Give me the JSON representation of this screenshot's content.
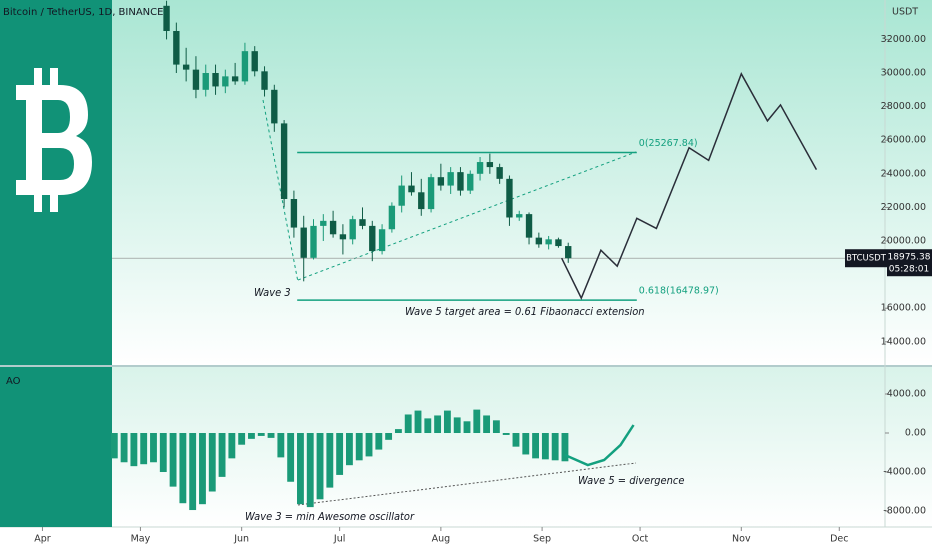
{
  "header": {
    "title": "Bitcoin / TetherUS, 1D, BINANCE",
    "currency": "USDT",
    "symbol": "BTCUSDT",
    "countdown": "05:28:01"
  },
  "chart_data": [
    {
      "type": "candlestick",
      "x": [
        38,
        41,
        44,
        47,
        50,
        53,
        56,
        59,
        62,
        65,
        68,
        71,
        74,
        77,
        80,
        83,
        86,
        89,
        92,
        95,
        98,
        101,
        104,
        107,
        110,
        113,
        116,
        119,
        122,
        125,
        128,
        131,
        134,
        137,
        140,
        143,
        146,
        149,
        152,
        155,
        158,
        161
      ],
      "open": [
        34000,
        32500,
        30500,
        30200,
        29000,
        30000,
        29200,
        29800,
        29500,
        31300,
        30100,
        29000,
        27000,
        22500,
        20800,
        19000,
        20900,
        21200,
        20400,
        20100,
        21300,
        20900,
        19400,
        20700,
        22100,
        23300,
        22900,
        21900,
        23800,
        23300,
        24100,
        23000,
        24000,
        24700,
        24400,
        23700,
        21400,
        21600,
        20200,
        19800,
        20100,
        19700
      ],
      "high": [
        34300,
        33000,
        31500,
        31000,
        30500,
        30500,
        30200,
        30600,
        31800,
        31600,
        30400,
        29300,
        27200,
        23000,
        21500,
        21300,
        21600,
        21800,
        21000,
        21500,
        22000,
        21200,
        21000,
        22300,
        23900,
        24100,
        23700,
        24000,
        24600,
        24400,
        24400,
        24200,
        25000,
        25200,
        24600,
        23900,
        21800,
        21700,
        20500,
        20300,
        20200,
        19900
      ],
      "low": [
        32000,
        30000,
        29500,
        28500,
        28600,
        28700,
        28800,
        29300,
        29300,
        29800,
        28600,
        26500,
        22000,
        20200,
        17600,
        18900,
        20000,
        20200,
        19200,
        19800,
        20700,
        18800,
        19200,
        20500,
        21700,
        22700,
        21500,
        21700,
        23000,
        22800,
        22700,
        22800,
        23600,
        24000,
        23400,
        20900,
        21200,
        19800,
        19600,
        19500,
        19600,
        18700
      ],
      "close": [
        32500,
        30500,
        30200,
        29000,
        30000,
        29200,
        29800,
        29500,
        31300,
        30100,
        29000,
        27000,
        22500,
        20800,
        19000,
        20900,
        21200,
        20400,
        20100,
        21300,
        20900,
        19400,
        20700,
        22100,
        23300,
        22900,
        21900,
        23800,
        23300,
        24100,
        23000,
        24000,
        24700,
        24400,
        23700,
        21400,
        21600,
        20200,
        19800,
        20100,
        19700,
        18975
      ],
      "up_color": "#1a9a78",
      "down_color": "#0f5c46",
      "xlim": [
        -13,
        258
      ],
      "ylim": [
        12620,
        34345
      ],
      "yticks": [
        {
          "value": 14000,
          "label": "14000.00"
        },
        {
          "value": 16000,
          "label": "16000.00"
        },
        {
          "value": 20000,
          "label": "20000.00"
        },
        {
          "value": 22000,
          "label": "22000.00"
        },
        {
          "value": 24000,
          "label": "24000.00"
        },
        {
          "value": 26000,
          "label": "26000.00"
        },
        {
          "value": 28000,
          "label": "28000.00"
        },
        {
          "value": 30000,
          "label": "30000.00"
        },
        {
          "value": 32000,
          "label": "32000.00"
        }
      ],
      "current_price": 18975.38,
      "projection": {
        "x": [
          159,
          165,
          171,
          176,
          182,
          188,
          198,
          204,
          214,
          222,
          226,
          237
        ],
        "values": [
          18975,
          16600,
          19450,
          18500,
          21350,
          20750,
          25550,
          24800,
          29950,
          27150,
          28100,
          24250
        ],
        "color": "#2a2e39"
      },
      "fib_x": [
        78,
        182
      ],
      "fib_levels": [
        {
          "value": 25267.84,
          "label": "0(25267.84)"
        },
        {
          "value": 16478.97,
          "label": "0.618(16478.97)"
        }
      ],
      "fib_color": "#13a07f",
      "annotations": [
        "Wave 3",
        "Wave 5 target area = 0.61 Fibaonacci extension"
      ]
    },
    {
      "type": "bar",
      "name": "AO",
      "x": [
        22,
        25,
        28,
        31,
        34,
        37,
        40,
        43,
        46,
        49,
        52,
        55,
        58,
        61,
        64,
        67,
        70,
        73,
        76,
        79,
        82,
        85,
        88,
        91,
        94,
        97,
        100,
        103,
        106,
        109,
        112,
        115,
        118,
        121,
        124,
        127,
        130,
        133,
        136,
        139,
        142,
        145,
        148,
        151,
        154,
        157,
        160
      ],
      "values": [
        -2600,
        -3000,
        -3400,
        -3200,
        -3000,
        -4000,
        -5500,
        -7200,
        -7900,
        -7300,
        -6000,
        -4500,
        -2600,
        -1200,
        -600,
        -300,
        -500,
        -2500,
        -5000,
        -7300,
        -7600,
        -6800,
        -5600,
        -4300,
        -3300,
        -2800,
        -2400,
        -1700,
        -700,
        400,
        1900,
        2300,
        1500,
        1800,
        2300,
        1600,
        1200,
        2400,
        1800,
        1300,
        -200,
        -1400,
        -2200,
        -2600,
        -2700,
        -2800,
        -2900
      ],
      "color": "#1a9a78",
      "xlim": [
        -13,
        258
      ],
      "ylim": [
        -9640,
        6770
      ],
      "yticks": [
        {
          "value": -8000,
          "label": "-8000.00"
        },
        {
          "value": -4000,
          "label": "-4000.00"
        },
        {
          "value": 0,
          "label": "0.00"
        },
        {
          "value": 4000,
          "label": "4000.00"
        }
      ],
      "xticks": [
        {
          "value": 0,
          "label": "Apr"
        },
        {
          "value": 30,
          "label": "May"
        },
        {
          "value": 61,
          "label": "Jun"
        },
        {
          "value": 91,
          "label": "Jul"
        },
        {
          "value": 122,
          "label": "Aug"
        },
        {
          "value": 153,
          "label": "Sep"
        },
        {
          "value": 183,
          "label": "Oct"
        },
        {
          "value": 214,
          "label": "Nov"
        },
        {
          "value": 244,
          "label": "Dec"
        }
      ],
      "projection": {
        "x": [
          160,
          167,
          172,
          177,
          181
        ],
        "values": [
          -2256,
          -3282,
          -2769,
          -1231,
          821
        ],
        "color": "#13a07f"
      },
      "annotations": [
        "Wave 3 = min Awesome oscillator",
        "Wave 5 = divergence"
      ]
    }
  ]
}
